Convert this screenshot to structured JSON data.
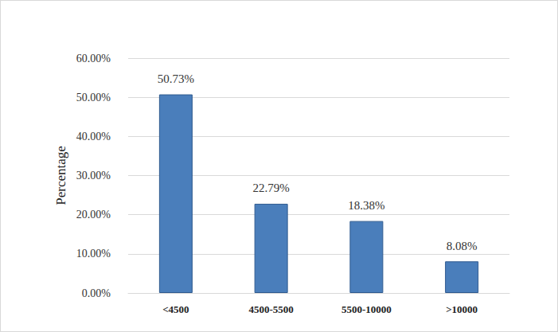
{
  "chart_data": {
    "type": "bar",
    "y_label": "Percentage",
    "categories": [
      "<4500",
      "4500-5500",
      "5500-10000",
      ">10000"
    ],
    "values": [
      50.73,
      22.79,
      18.38,
      8.08
    ],
    "value_labels": [
      "50.73%",
      "22.79%",
      "18.38%",
      "8.08%"
    ],
    "data_labels": true,
    "color": "#4a7ebb",
    "ylim": [
      0,
      60
    ],
    "yticks": [
      {
        "value": 0,
        "label": "0.00%"
      },
      {
        "value": 10,
        "label": "10.00%"
      },
      {
        "value": 20,
        "label": "20.00%"
      },
      {
        "value": 30,
        "label": "30.00%"
      },
      {
        "value": 40,
        "label": "40.00%"
      },
      {
        "value": 50,
        "label": "50.00%"
      },
      {
        "value": 60,
        "label": "60.00%"
      }
    ],
    "grid": true
  }
}
